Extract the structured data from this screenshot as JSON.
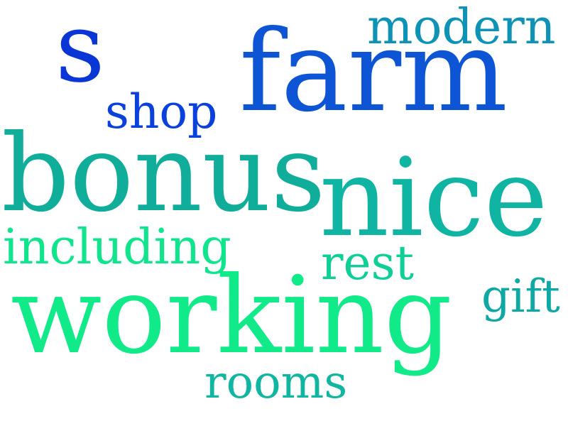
{
  "words": {
    "s": {
      "text": "s",
      "color": "#0b36d6"
    },
    "modern": {
      "text": "modern",
      "color": "#0e93b6"
    },
    "farm": {
      "text": "farm",
      "color": "#0d55d4"
    },
    "shop": {
      "text": "shop",
      "color": "#0a40dc"
    },
    "bonus": {
      "text": "bonus",
      "color": "#0fad9a"
    },
    "nice": {
      "text": "nice",
      "color": "#0fb4a2"
    },
    "including": {
      "text": "including",
      "color": "#10e58e"
    },
    "rest": {
      "text": "rest",
      "color": "#10cf96"
    },
    "gift": {
      "text": "gift",
      "color": "#0fa8a4"
    },
    "working": {
      "text": "working",
      "color": "#11ea88"
    },
    "rooms": {
      "text": "rooms",
      "color": "#10b6a0"
    }
  }
}
